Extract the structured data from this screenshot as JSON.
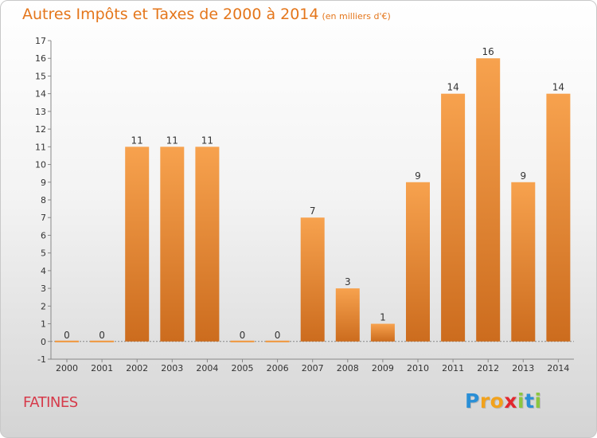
{
  "header": {
    "title": "Autres Impôts et Taxes de 2000 à 2014",
    "subtitle": "(en milliers d'€)"
  },
  "place_name": "FATINES",
  "logo": {
    "letters": [
      {
        "ch": "P",
        "color": "#2a8fd6"
      },
      {
        "ch": "r",
        "color": "#f2a21c"
      },
      {
        "ch": "o",
        "color": "#f2a21c"
      },
      {
        "ch": "x",
        "color": "#e2272e"
      },
      {
        "ch": "i",
        "color": "#8cc63f"
      },
      {
        "ch": "t",
        "color": "#2a8fd6"
      },
      {
        "ch": "i",
        "color": "#8cc63f"
      }
    ]
  },
  "chart_data": {
    "type": "bar",
    "categories": [
      "2000",
      "2001",
      "2002",
      "2003",
      "2004",
      "2005",
      "2006",
      "2007",
      "2008",
      "2009",
      "2010",
      "2011",
      "2012",
      "2013",
      "2014"
    ],
    "values": [
      0,
      0,
      11,
      11,
      11,
      0,
      0,
      7,
      3,
      1,
      9,
      14,
      16,
      9,
      14
    ],
    "title": "Autres Impôts et Taxes de 2000 à 2014",
    "subtitle": "(en milliers d'€)",
    "xlabel": "",
    "ylabel": "",
    "ylim": [
      -1,
      17
    ],
    "yticks": [
      -1,
      0,
      1,
      2,
      3,
      4,
      5,
      6,
      7,
      8,
      9,
      10,
      11,
      12,
      13,
      14,
      15,
      16,
      17
    ],
    "grid": false,
    "bar_color": "#f0953a",
    "bar_color_dark": "#c96a1c"
  }
}
